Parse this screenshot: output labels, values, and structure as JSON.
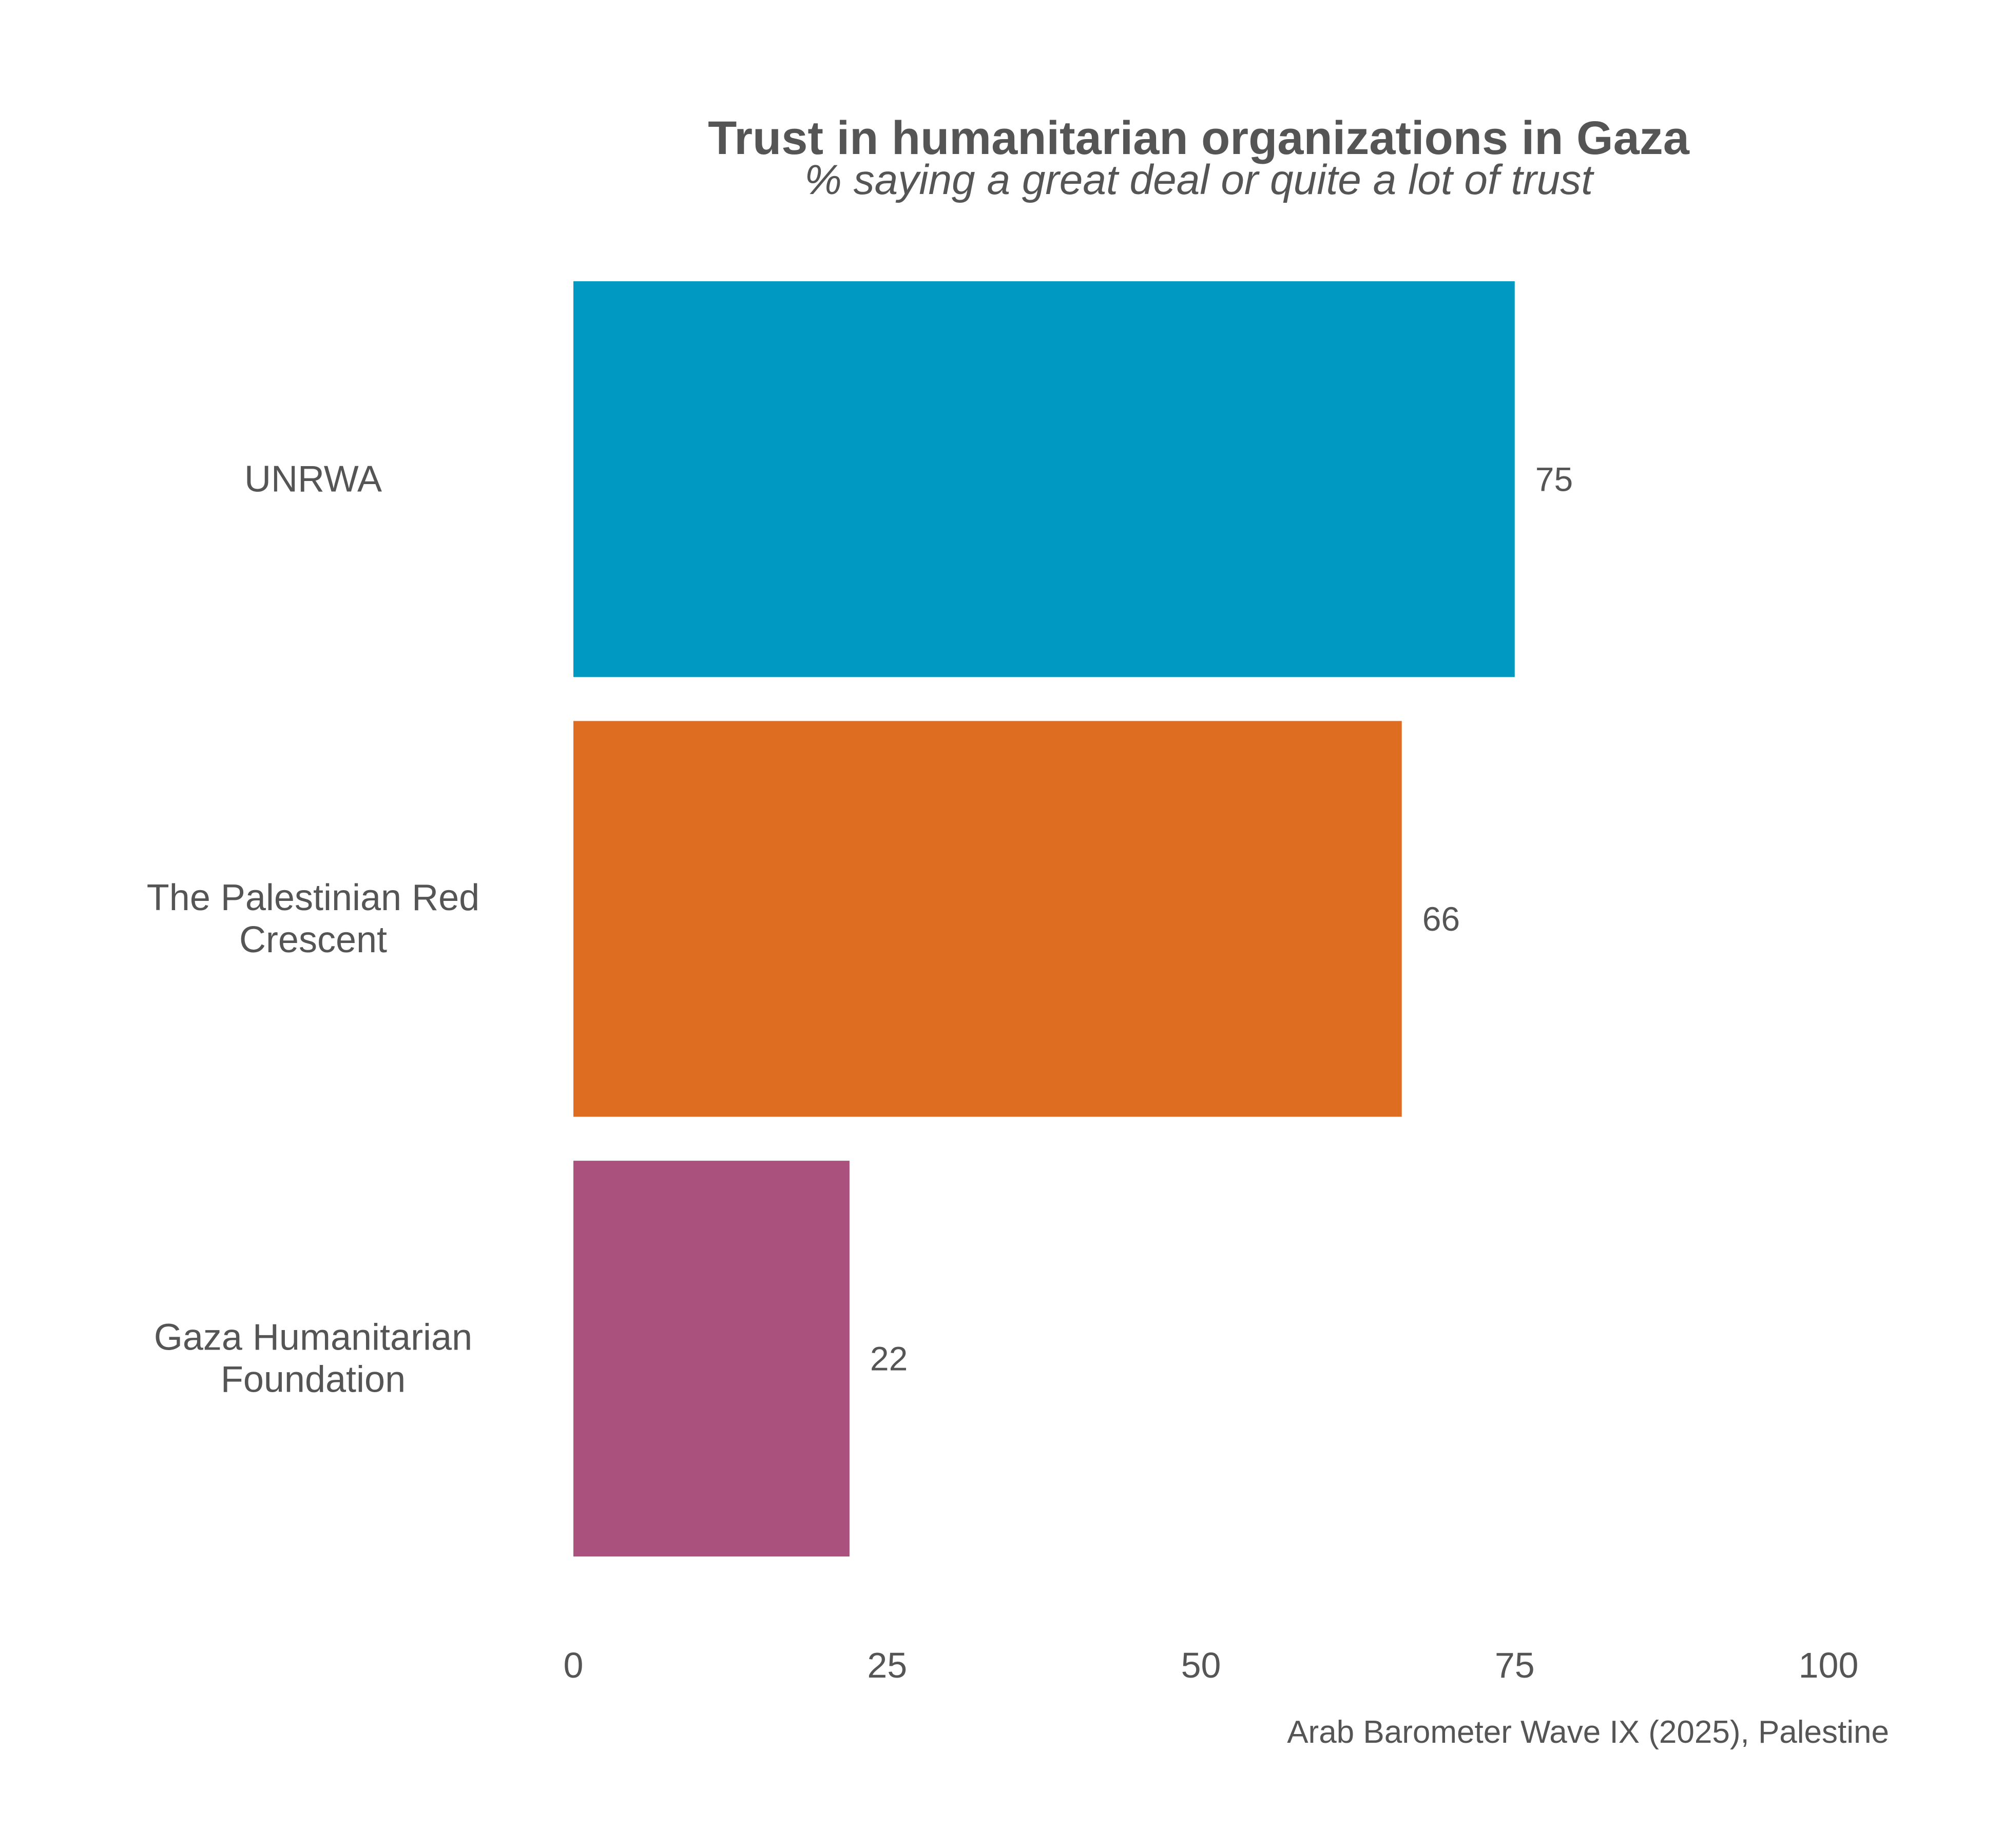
{
  "chart_data": {
    "type": "bar",
    "orientation": "horizontal",
    "title": "Trust in humanitarian organizations in Gaza",
    "subtitle": "% saying a great deal or quite a lot of trust",
    "categories": [
      [
        "UNRWA"
      ],
      [
        "The Palestinian Red",
        "Crescent"
      ],
      [
        "Gaza Humanitarian",
        "Foundation"
      ]
    ],
    "values": [
      75,
      66,
      22
    ],
    "value_labels": [
      "75",
      "66",
      "22"
    ],
    "colors": [
      "#0099C1",
      "#DF6D21",
      "#AB517D"
    ],
    "xlim": [
      0,
      100
    ],
    "x_ticks": [
      0,
      25,
      50,
      75,
      100
    ],
    "x_tick_labels": [
      "0",
      "25",
      "50",
      "75",
      "100"
    ],
    "grid": false,
    "legend": "none",
    "caption": "Arab Barometer Wave IX (2025), Palestine"
  }
}
